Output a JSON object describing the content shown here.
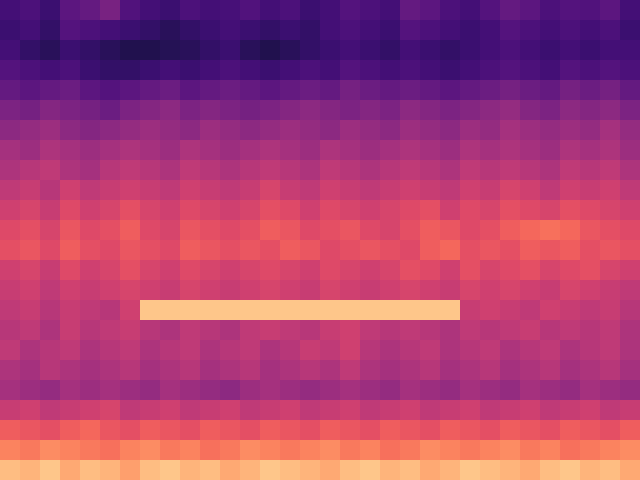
{
  "chart_data": {
    "type": "heatmap",
    "color": "magma",
    "tick_labels": false,
    "zlim": [
      0,
      100
    ],
    "cells": [
      [
        22,
        24,
        20,
        28,
        30,
        35,
        25,
        22,
        20,
        24,
        22,
        23,
        25,
        22,
        24,
        20,
        22,
        26,
        24,
        22,
        30,
        28,
        24,
        22,
        26,
        30,
        28,
        24,
        26,
        25,
        28,
        22
      ],
      [
        20,
        22,
        18,
        26,
        24,
        22,
        20,
        18,
        16,
        18,
        20,
        22,
        20,
        18,
        20,
        18,
        22,
        24,
        22,
        20,
        26,
        24,
        22,
        20,
        22,
        26,
        24,
        22,
        24,
        22,
        24,
        20
      ],
      [
        22,
        18,
        16,
        20,
        18,
        16,
        14,
        14,
        15,
        16,
        18,
        20,
        16,
        14,
        16,
        18,
        20,
        22,
        20,
        18,
        22,
        20,
        18,
        20,
        22,
        24,
        22,
        20,
        22,
        20,
        22,
        22
      ],
      [
        26,
        24,
        22,
        24,
        20,
        18,
        18,
        20,
        22,
        20,
        22,
        24,
        22,
        20,
        22,
        24,
        22,
        26,
        24,
        22,
        24,
        22,
        20,
        22,
        24,
        26,
        24,
        22,
        26,
        24,
        26,
        24
      ],
      [
        30,
        28,
        30,
        32,
        28,
        26,
        28,
        30,
        32,
        28,
        30,
        32,
        30,
        28,
        30,
        32,
        30,
        34,
        32,
        30,
        32,
        30,
        28,
        30,
        32,
        34,
        32,
        30,
        34,
        32,
        34,
        30
      ],
      [
        36,
        34,
        38,
        36,
        34,
        32,
        36,
        38,
        40,
        36,
        38,
        36,
        34,
        36,
        38,
        40,
        38,
        36,
        38,
        36,
        40,
        38,
        36,
        38,
        40,
        42,
        38,
        36,
        40,
        38,
        40,
        36
      ],
      [
        40,
        42,
        44,
        40,
        38,
        40,
        42,
        44,
        42,
        40,
        44,
        42,
        40,
        42,
        44,
        42,
        40,
        44,
        42,
        40,
        44,
        42,
        40,
        44,
        42,
        46,
        44,
        42,
        44,
        42,
        46,
        42
      ],
      [
        46,
        44,
        48,
        46,
        44,
        46,
        48,
        46,
        44,
        48,
        46,
        44,
        46,
        48,
        46,
        44,
        48,
        46,
        44,
        46,
        48,
        46,
        44,
        48,
        46,
        48,
        46,
        44,
        48,
        46,
        48,
        44
      ],
      [
        48,
        50,
        52,
        48,
        46,
        50,
        52,
        50,
        48,
        52,
        50,
        48,
        50,
        52,
        50,
        48,
        52,
        50,
        48,
        50,
        52,
        50,
        48,
        52,
        50,
        52,
        50,
        48,
        52,
        50,
        52,
        48
      ],
      [
        52,
        54,
        50,
        56,
        52,
        54,
        56,
        54,
        52,
        56,
        54,
        52,
        54,
        58,
        54,
        52,
        56,
        54,
        52,
        54,
        56,
        54,
        52,
        56,
        54,
        58,
        56,
        52,
        56,
        54,
        56,
        52
      ],
      [
        56,
        58,
        54,
        60,
        56,
        58,
        62,
        58,
        56,
        60,
        58,
        56,
        58,
        62,
        60,
        56,
        60,
        58,
        56,
        58,
        60,
        62,
        56,
        60,
        58,
        62,
        60,
        58,
        62,
        60,
        58,
        56
      ],
      [
        60,
        62,
        58,
        64,
        60,
        62,
        66,
        60,
        58,
        64,
        62,
        60,
        62,
        66,
        64,
        60,
        62,
        64,
        60,
        58,
        62,
        66,
        64,
        60,
        62,
        66,
        68,
        70,
        68,
        64,
        62,
        60
      ],
      [
        62,
        64,
        60,
        66,
        62,
        60,
        64,
        62,
        60,
        66,
        64,
        62,
        64,
        62,
        66,
        64,
        60,
        62,
        64,
        62,
        60,
        66,
        68,
        62,
        64,
        62,
        66,
        64,
        66,
        62,
        64,
        62
      ],
      [
        56,
        58,
        54,
        60,
        56,
        58,
        62,
        58,
        56,
        60,
        58,
        56,
        58,
        60,
        58,
        56,
        60,
        58,
        56,
        58,
        62,
        60,
        56,
        62,
        58,
        60,
        62,
        58,
        60,
        62,
        58,
        56
      ],
      [
        54,
        56,
        52,
        56,
        54,
        56,
        58,
        56,
        54,
        58,
        56,
        54,
        56,
        58,
        56,
        54,
        58,
        56,
        54,
        56,
        58,
        56,
        54,
        58,
        56,
        58,
        56,
        54,
        58,
        56,
        54,
        52
      ],
      [
        52,
        54,
        50,
        54,
        52,
        50,
        56,
        88,
        88,
        88,
        88,
        88,
        88,
        88,
        88,
        88,
        88,
        88,
        88,
        88,
        88,
        88,
        88,
        54,
        56,
        54,
        52,
        56,
        54,
        52,
        54,
        50
      ],
      [
        50,
        52,
        48,
        54,
        50,
        52,
        54,
        50,
        48,
        52,
        50,
        48,
        52,
        54,
        52,
        50,
        54,
        56,
        52,
        50,
        52,
        50,
        48,
        52,
        50,
        52,
        54,
        50,
        52,
        50,
        52,
        48
      ],
      [
        52,
        48,
        50,
        52,
        48,
        50,
        52,
        48,
        50,
        52,
        48,
        50,
        52,
        48,
        50,
        54,
        52,
        56,
        50,
        48,
        50,
        52,
        48,
        50,
        52,
        48,
        50,
        52,
        48,
        50,
        52,
        48
      ],
      [
        48,
        46,
        50,
        48,
        46,
        48,
        50,
        46,
        48,
        50,
        46,
        48,
        50,
        46,
        48,
        50,
        48,
        52,
        48,
        46,
        48,
        50,
        46,
        48,
        50,
        46,
        48,
        50,
        46,
        48,
        50,
        46
      ],
      [
        46,
        44,
        42,
        46,
        44,
        46,
        44,
        42,
        46,
        44,
        42,
        40,
        44,
        46,
        44,
        42,
        44,
        46,
        44,
        42,
        46,
        44,
        42,
        46,
        44,
        42,
        46,
        44,
        42,
        46,
        44,
        42
      ],
      [
        54,
        56,
        52,
        54,
        56,
        58,
        52,
        54,
        56,
        52,
        54,
        56,
        52,
        54,
        56,
        52,
        54,
        56,
        52,
        54,
        56,
        52,
        54,
        56,
        52,
        54,
        56,
        52,
        54,
        56,
        52,
        54
      ],
      [
        66,
        64,
        62,
        66,
        68,
        64,
        62,
        66,
        64,
        62,
        66,
        64,
        62,
        66,
        64,
        62,
        66,
        64,
        62,
        66,
        64,
        62,
        66,
        64,
        62,
        66,
        64,
        62,
        66,
        64,
        62,
        66
      ],
      [
        74,
        72,
        76,
        74,
        72,
        70,
        74,
        76,
        72,
        74,
        70,
        72,
        76,
        74,
        72,
        74,
        76,
        72,
        74,
        70,
        72,
        76,
        74,
        72,
        74,
        76,
        72,
        74,
        70,
        72,
        74,
        76
      ],
      [
        86,
        84,
        88,
        82,
        86,
        84,
        80,
        86,
        88,
        84,
        86,
        82,
        84,
        88,
        86,
        84,
        82,
        86,
        88,
        84,
        86,
        82,
        84,
        88,
        86,
        84,
        82,
        86,
        88,
        84,
        86,
        82
      ]
    ]
  }
}
